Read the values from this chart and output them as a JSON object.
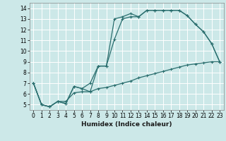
{
  "title": "",
  "xlabel": "Humidex (Indice chaleur)",
  "ylabel": "",
  "bg_color": "#cce8e8",
  "grid_color": "#ffffff",
  "line_color": "#2a6e6e",
  "xlim": [
    -0.5,
    23.5
  ],
  "ylim": [
    4.5,
    14.5
  ],
  "xticks": [
    0,
    1,
    2,
    3,
    4,
    5,
    6,
    7,
    8,
    9,
    10,
    11,
    12,
    13,
    14,
    15,
    16,
    17,
    18,
    19,
    20,
    21,
    22,
    23
  ],
  "yticks": [
    5,
    6,
    7,
    8,
    9,
    10,
    11,
    12,
    13,
    14
  ],
  "curve1_x": [
    0,
    1,
    2,
    3,
    4,
    5,
    6,
    7,
    8,
    9,
    10,
    11,
    12,
    13,
    14,
    15,
    16,
    17,
    18,
    19,
    20,
    21,
    22,
    23
  ],
  "curve1_y": [
    7.0,
    5.0,
    4.8,
    5.3,
    5.1,
    6.7,
    6.5,
    6.2,
    8.6,
    8.6,
    13.0,
    13.2,
    13.5,
    13.2,
    13.8,
    13.8,
    13.8,
    13.8,
    13.8,
    13.3,
    12.5,
    11.8,
    10.7,
    9.0
  ],
  "curve2_x": [
    0,
    1,
    2,
    3,
    4,
    5,
    6,
    7,
    8,
    9,
    10,
    11,
    12,
    13,
    14,
    15,
    16,
    17,
    18,
    19,
    20,
    21,
    22,
    23
  ],
  "curve2_y": [
    7.0,
    5.0,
    4.8,
    5.3,
    5.1,
    6.7,
    6.5,
    7.0,
    8.6,
    8.6,
    11.1,
    13.0,
    13.2,
    13.2,
    13.8,
    13.8,
    13.8,
    13.8,
    13.8,
    13.3,
    12.5,
    11.8,
    10.7,
    9.0
  ],
  "curve3_x": [
    0,
    1,
    2,
    3,
    4,
    5,
    6,
    7,
    8,
    9,
    10,
    11,
    12,
    13,
    14,
    15,
    16,
    17,
    18,
    19,
    20,
    21,
    22,
    23
  ],
  "curve3_y": [
    7.0,
    5.0,
    4.8,
    5.3,
    5.3,
    6.1,
    6.2,
    6.2,
    6.5,
    6.6,
    6.8,
    7.0,
    7.2,
    7.5,
    7.7,
    7.9,
    8.1,
    8.3,
    8.5,
    8.7,
    8.8,
    8.9,
    9.0,
    9.0
  ],
  "marker": "+",
  "markersize": 3,
  "linewidth": 0.9,
  "tick_fontsize": 5.5,
  "xlabel_fontsize": 6.5
}
